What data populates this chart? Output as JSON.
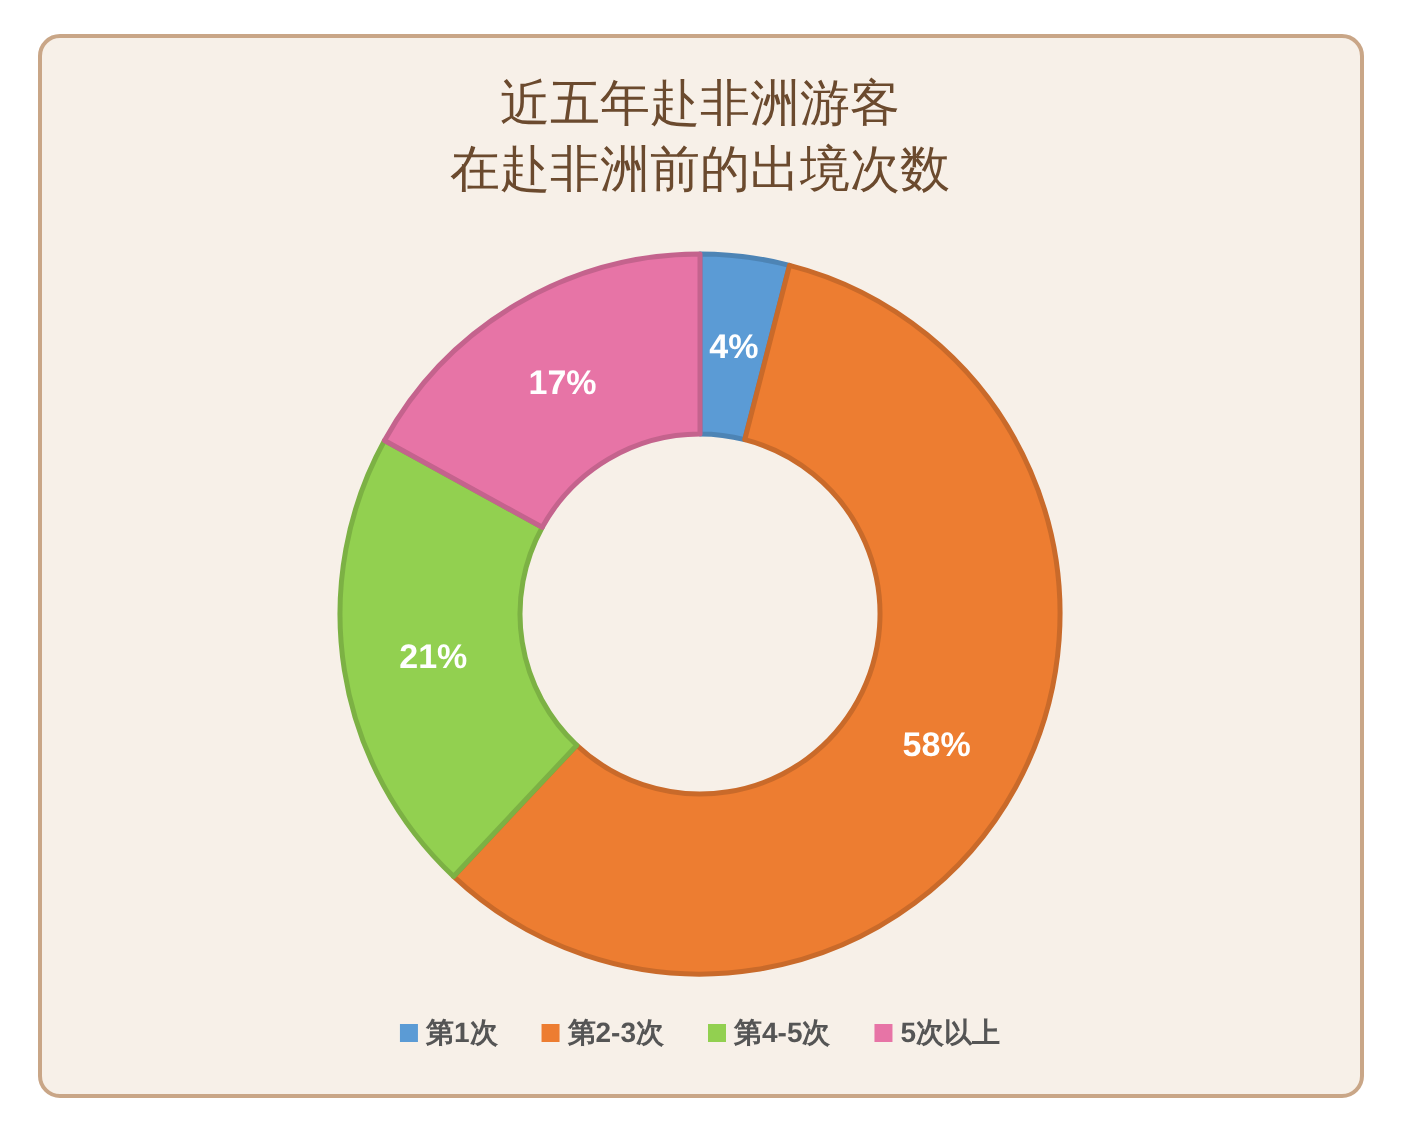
{
  "chart_data": {
    "type": "donut",
    "title": "近五年赴非洲游客",
    "subtitle": "在赴非洲前的出境次数",
    "categories": [
      "第1次",
      "第2-3次",
      "第4-5次",
      "5次以上"
    ],
    "values": [
      4,
      58,
      21,
      17
    ],
    "value_labels": [
      "4%",
      "58%",
      "21%",
      "17%"
    ],
    "colors": [
      "#5b9bd5",
      "#ed7d31",
      "#92d050",
      "#e774a6"
    ],
    "legend": "bottom"
  }
}
